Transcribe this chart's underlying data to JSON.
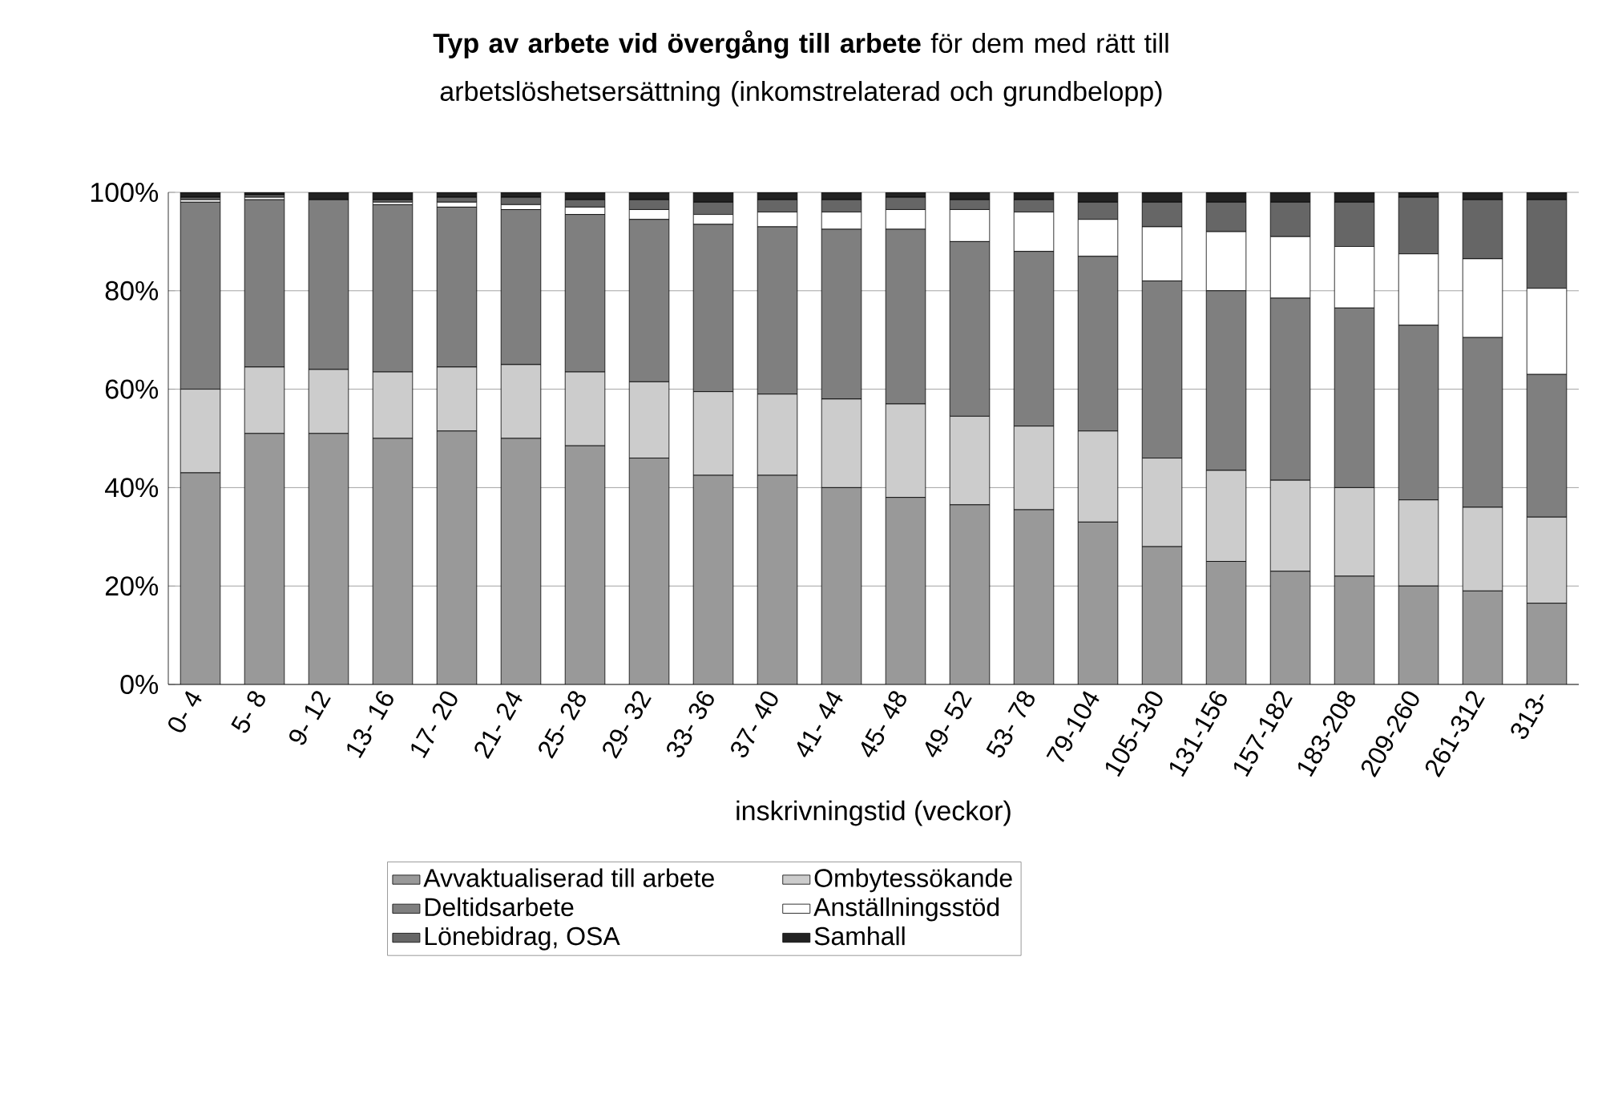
{
  "chart_data": {
    "type": "bar",
    "stacked": true,
    "title": "**Typ av arbete vid övergång till arbete** för dem med rätt till arbetslöshetsersättning (inkomstrelaterad och grundbelopp)",
    "xlabel": "inskrivningstid (veckor)",
    "categories": [
      "0- 4",
      "5- 8",
      "9- 12",
      "13- 16",
      "17- 20",
      "21- 24",
      "25- 28",
      "29- 32",
      "33- 36",
      "37- 40",
      "41- 44",
      "45- 48",
      "49- 52",
      "53- 78",
      "79-104",
      "105-130",
      "131-156",
      "157-182",
      "183-208",
      "209-260",
      "261-312",
      "313-"
    ],
    "series": [
      {
        "name": "Avvaktualiserad till arbete",
        "color": "#999999",
        "values": [
          43,
          51,
          51,
          50,
          51.5,
          50,
          48.5,
          46,
          42.5,
          42.5,
          40,
          38,
          36.5,
          35.5,
          33,
          28,
          25,
          23,
          22,
          20,
          19,
          16.5
        ]
      },
      {
        "name": "Ombytessökande",
        "color": "#cccccc",
        "values": [
          17,
          13.5,
          13,
          13.5,
          13,
          15,
          15,
          15.5,
          17,
          16.5,
          18,
          19,
          18,
          17,
          18.5,
          18,
          18.5,
          18.5,
          18,
          17.5,
          17,
          17.5
        ]
      },
      {
        "name": "Deltidsarbete",
        "color": "#7f7f7f",
        "values": [
          38,
          34,
          34.5,
          34,
          32.5,
          31.5,
          32,
          33,
          34,
          34,
          34.5,
          35.5,
          35.5,
          35.5,
          35.5,
          36,
          36.5,
          37,
          36.5,
          35.5,
          34.5,
          29
        ]
      },
      {
        "name": "Anställningsstöd",
        "color": "#ffffff",
        "values": [
          0.5,
          0.5,
          0,
          0.5,
          1,
          1,
          1.5,
          2,
          2,
          3,
          3.5,
          4,
          6.5,
          8,
          7.5,
          11,
          12,
          12.5,
          12.5,
          14.5,
          16,
          17.5
        ]
      },
      {
        "name": "Lönebidrag, OSA",
        "color": "#666666",
        "values": [
          0.5,
          0.5,
          0,
          0.5,
          1,
          1.5,
          1.5,
          2,
          2.5,
          2.5,
          2.5,
          2.5,
          2,
          2.5,
          3.5,
          5,
          6,
          7,
          9,
          11.5,
          12,
          18
        ]
      },
      {
        "name": "Samhall",
        "color": "#222222",
        "values": [
          1,
          0.5,
          1.5,
          1.5,
          1,
          1,
          1.5,
          1.5,
          2,
          1.5,
          1.5,
          1,
          1.5,
          1.5,
          2,
          2,
          2,
          2,
          2,
          1,
          1.5,
          1.5
        ]
      }
    ],
    "ylim": [
      0,
      100
    ],
    "yticks": [
      {
        "value": 0,
        "label": "0%"
      },
      {
        "value": 20,
        "label": "20%"
      },
      {
        "value": 40,
        "label": "40%"
      },
      {
        "value": 60,
        "label": "60%"
      },
      {
        "value": 80,
        "label": "80%"
      },
      {
        "value": 100,
        "label": "100%"
      }
    ],
    "grid": "y",
    "legend": "bottom"
  }
}
